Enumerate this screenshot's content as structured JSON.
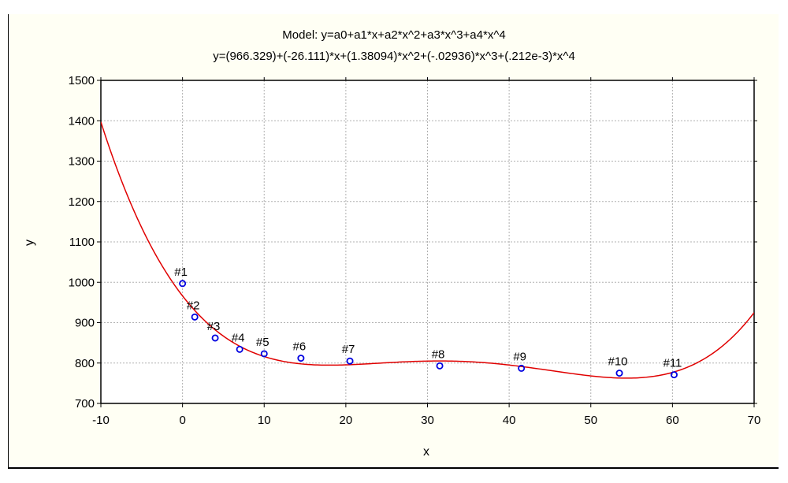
{
  "chart_data": {
    "type": "scatter",
    "title": "Model: y=a0+a1*x+a2*x^2+a3*x^3+a4*x^4",
    "subtitle": "y=(966.329)+(-26.111)*x+(1.38094)*x^2+(-.02936)*x^3+(.212e-3)*x^4",
    "xlabel": "x",
    "ylabel": "y",
    "xlim": [
      -10,
      70
    ],
    "ylim": [
      700,
      1500
    ],
    "xticks": [
      -10,
      0,
      10,
      20,
      30,
      40,
      50,
      60,
      70
    ],
    "yticks": [
      700,
      800,
      900,
      1000,
      1100,
      1200,
      1300,
      1400,
      1500
    ],
    "grid": true,
    "coefficients": [
      966.329,
      -26.111,
      1.38094,
      -0.02936,
      0.000212
    ],
    "points": [
      {
        "label": "#1",
        "x": 0,
        "y": 997
      },
      {
        "label": "#2",
        "x": 1.5,
        "y": 914
      },
      {
        "label": "#3",
        "x": 4,
        "y": 862
      },
      {
        "label": "#4",
        "x": 7,
        "y": 834
      },
      {
        "label": "#5",
        "x": 10,
        "y": 823
      },
      {
        "label": "#6",
        "x": 14.5,
        "y": 812
      },
      {
        "label": "#7",
        "x": 20.5,
        "y": 805
      },
      {
        "label": "#8",
        "x": 31.5,
        "y": 793
      },
      {
        "label": "#9",
        "x": 41.5,
        "y": 787
      },
      {
        "label": "#10",
        "x": 53.5,
        "y": 775
      },
      {
        "label": "#11",
        "x": 60.2,
        "y": 771
      }
    ],
    "colors": {
      "curve": "#e00000",
      "points": "#0000e0",
      "grid": "#b0b0b0",
      "background": "#fffff4"
    }
  }
}
